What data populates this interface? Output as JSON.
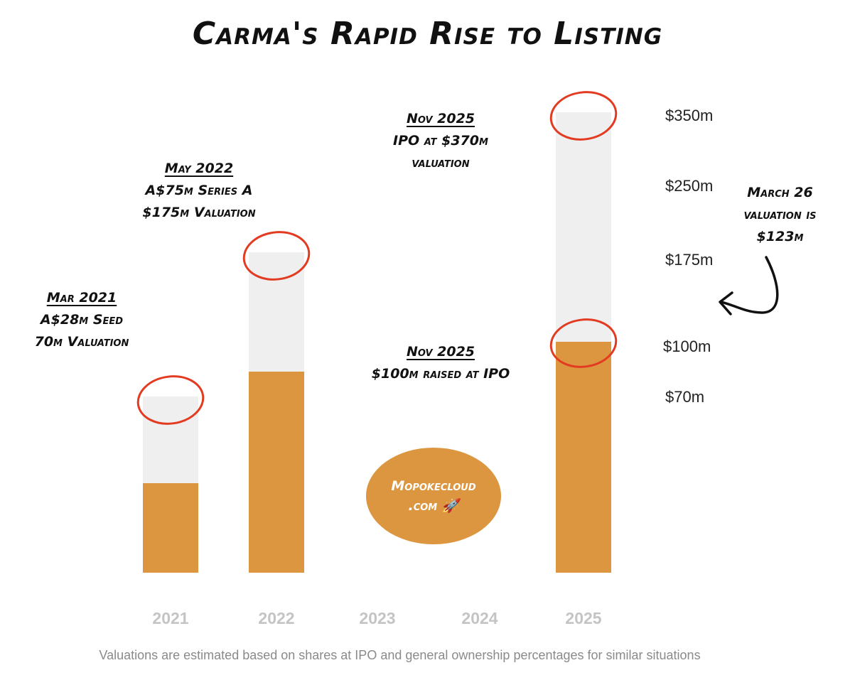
{
  "title": "Carma's Rapid Rise to Listing",
  "footnote": "Valuations are estimated based on shares at IPO and general ownership percentages for similar situations",
  "annotations": {
    "mar2021": {
      "head": "Mar 2021",
      "line1": "A$28m Seed",
      "line2": "70m Valuation"
    },
    "may2022": {
      "head": "May 2022",
      "line1": "A$75m Series A",
      "line2": "$175m Valuation"
    },
    "nov2025_ipo": {
      "head": "Nov 2025",
      "line1": "IPO at $370m",
      "line2": "valuation"
    },
    "nov2025_raised": {
      "head": "Nov 2025",
      "line1": "$100m raised at IPO"
    },
    "march26": {
      "line1": "March 26",
      "line2": "valuation is",
      "line3": "$123m"
    }
  },
  "value_labels": [
    "$350m",
    "$250m",
    "$175m",
    "$100m",
    "$70m"
  ],
  "badge": {
    "line1": "Mopokecloud",
    "line2": ".com 🚀"
  },
  "colors": {
    "raised": "#dd9640",
    "valuation": "#efefef",
    "circle": "#e23b22",
    "axis_text": "#c4c4c4"
  },
  "chart_data": {
    "type": "bar",
    "categories": [
      "2021",
      "2022",
      "2023",
      "2024",
      "2025"
    ],
    "series": [
      {
        "values": [
          28,
          75,
          null,
          null,
          100
        ]
      },
      {
        "values": [
          70,
          175,
          null,
          null,
          370
        ]
      }
    ],
    "title": "Carma's Rapid Rise to Listing",
    "xlabel": "",
    "ylabel": "",
    "grid": false,
    "legend": "none"
  }
}
